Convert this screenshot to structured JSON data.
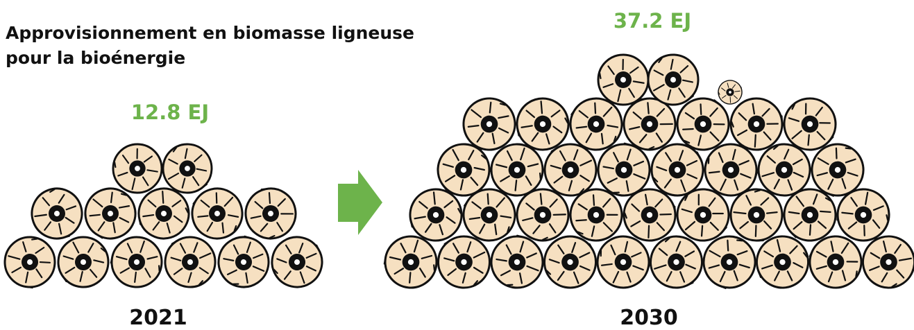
{
  "header": {
    "title_lines": [
      "Approvisionnement en biomasse ligneuse",
      "pour la bioénergie"
    ]
  },
  "before": {
    "amount": "12.8 EJ",
    "year": "2021"
  },
  "after": {
    "amount": "37.2 EJ",
    "year": "2030"
  }
}
